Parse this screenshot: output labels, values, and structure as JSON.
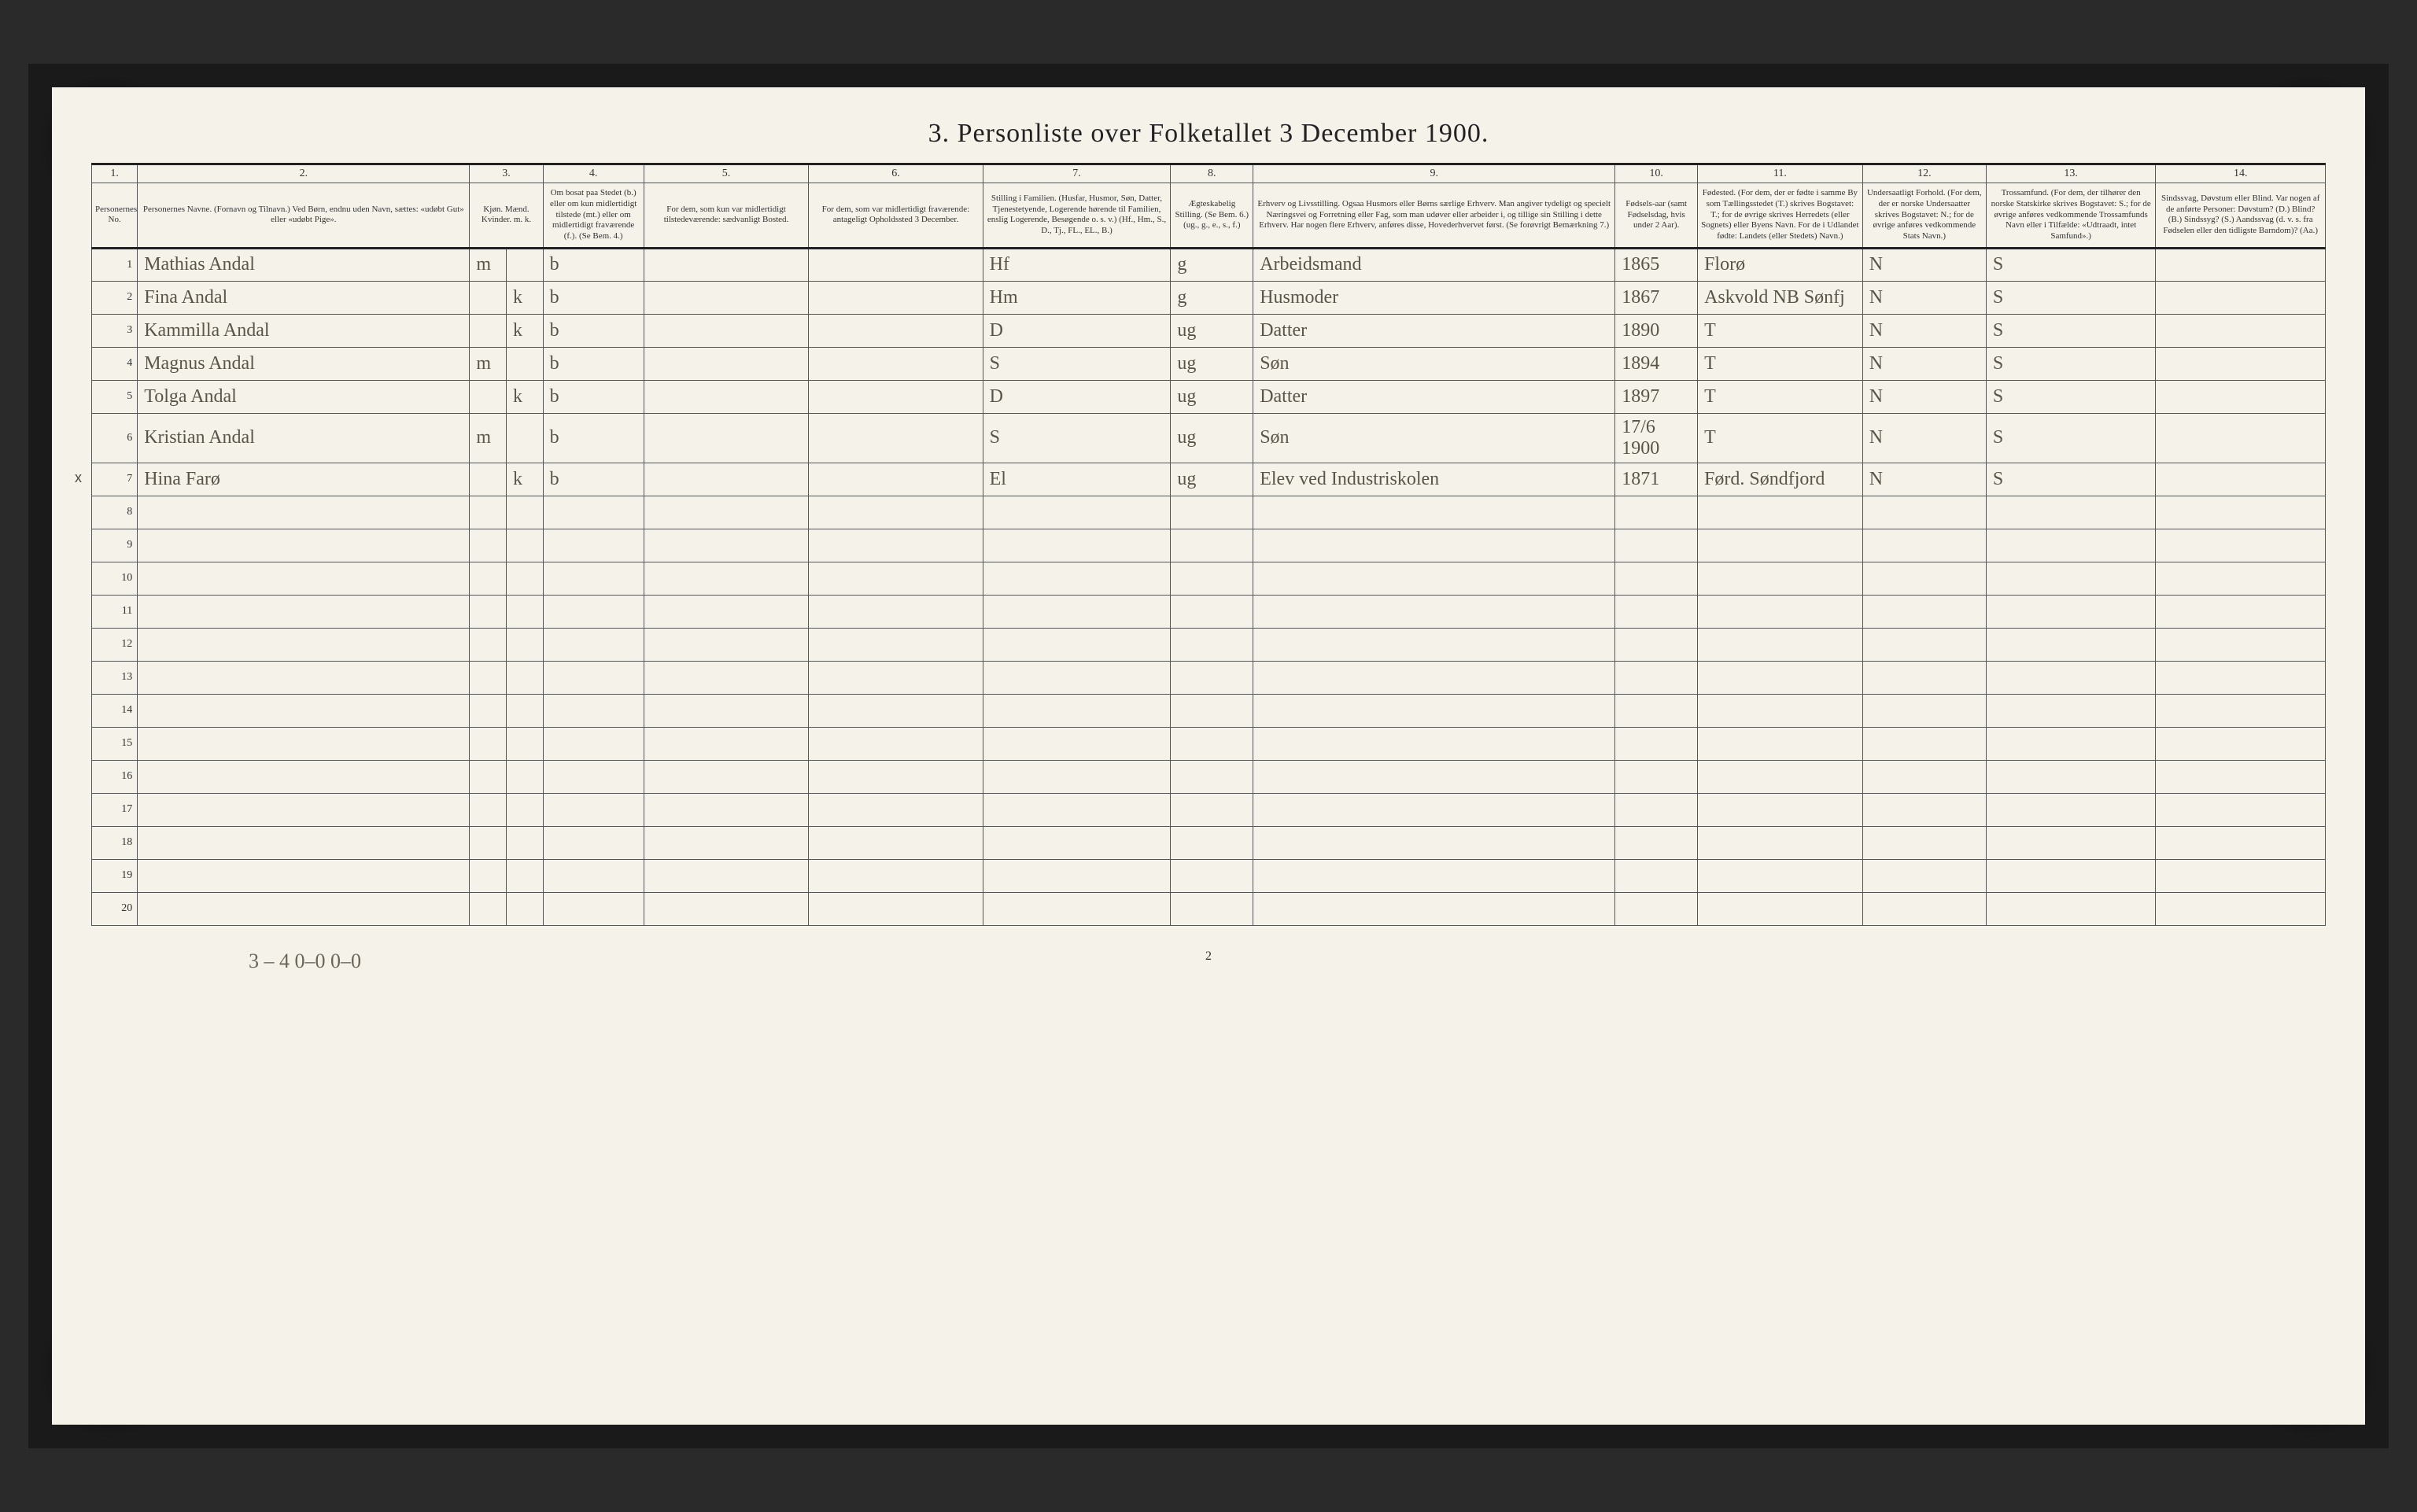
{
  "title": "3. Personliste over Folketallet 3 December 1900.",
  "colnums": [
    "1.",
    "2.",
    "3.",
    "4.",
    "5.",
    "6.",
    "7.",
    "8.",
    "9.",
    "10.",
    "11.",
    "12.",
    "13.",
    "14."
  ],
  "headers": {
    "c1": "Personernes No.",
    "c2": "Personernes Navne.\n(Fornavn og Tilnavn.)\nVed Børn, endnu uden Navn, sættes: «udøbt Gut» eller «udøbt Pige».",
    "c3": "Kjøn.\nMænd. Kvinder.\nm.  k.",
    "c4": "Om bosat paa Stedet (b.) eller om kun midlertidigt tilstede (mt.) eller om midlertidigt fraværende (f.). (Se Bem. 4.)",
    "c5": "For dem, som kun var midlertidigt tilstedeværende:\nsædvanligt Bosted.",
    "c6": "For dem, som var midlertidigt fraværende:\nantageligt Opholdssted 3 December.",
    "c7": "Stilling i Familien.\n(Husfar, Husmor, Søn, Datter, Tjenestetyende, Logerende hørende til Familien, enslig Logerende, Besøgende o. s. v.)\n(Hf., Hm., S., D., Tj., FL., EL., B.)",
    "c8": "Ægteskabelig Stilling.\n(Se Bem. 6.)\n(ug., g., e., s., f.)",
    "c9": "Erhverv og Livsstilling.\nOgsaa Husmors eller Børns særlige Erhverv. Man angiver tydeligt og specielt Næringsvei og Forretning eller Fag, som man udøver eller arbeider i, og tillige sin Stilling i dette Erhverv. Har nogen flere Erhverv, anføres disse, Hovederhvervet først.\n(Se forøvrigt Bemærkning 7.)",
    "c10": "Fødsels-aar (samt Fødselsdag, hvis under 2 Aar).",
    "c11": "Fødested.\n(For dem, der er fødte i samme By som Tællingsstedet (T.) skrives Bogstavet: T.; for de øvrige skrives Herredets (eller Sognets) eller Byens Navn. For de i Udlandet fødte: Landets (eller Stedets) Navn.)",
    "c12": "Undersaatligt Forhold.\n(For dem, der er norske Undersaatter skrives Bogstavet: N.; for de øvrige anføres vedkommende Stats Navn.)",
    "c13": "Trossamfund.\n(For dem, der tilhører den norske Statskirke skrives Bogstavet: S.; for de øvrige anføres vedkommende Trossamfunds Navn eller i Tilfælde: «Udtraadt, intet Samfund».)",
    "c14": "Sindssvag, Døvstum eller Blind.\nVar nogen af de anførte Personer: Døvstum? (D.) Blind? (B.) Sindssyg? (S.) Aandssvag (d. v. s. fra Fødselen eller den tidligste Barndom)? (Aa.)"
  },
  "rows": [
    {
      "n": "1",
      "name": "Mathias Andal",
      "m": "m",
      "k": "",
      "c4": "b",
      "c5": "",
      "c6": "",
      "c7": "Hf",
      "c8": "g",
      "c9": "Arbeidsmand",
      "c10": "1865",
      "c11": "Florø",
      "c12": "N",
      "c13": "S",
      "c14": ""
    },
    {
      "n": "2",
      "name": "Fina Andal",
      "m": "",
      "k": "k",
      "c4": "b",
      "c5": "",
      "c6": "",
      "c7": "Hm",
      "c8": "g",
      "c9": "Husmoder",
      "c10": "1867",
      "c11": "Askvold  NB Sønfj",
      "c12": "N",
      "c13": "S",
      "c14": ""
    },
    {
      "n": "3",
      "name": "Kammilla Andal",
      "m": "",
      "k": "k",
      "c4": "b",
      "c5": "",
      "c6": "",
      "c7": "D",
      "c8": "ug",
      "c9": "Datter",
      "c10": "1890",
      "c11": "T",
      "c12": "N",
      "c13": "S",
      "c14": ""
    },
    {
      "n": "4",
      "name": "Magnus Andal",
      "m": "m",
      "k": "",
      "c4": "b",
      "c5": "",
      "c6": "",
      "c7": "S",
      "c8": "ug",
      "c9": "Søn",
      "c10": "1894",
      "c11": "T",
      "c12": "N",
      "c13": "S",
      "c14": ""
    },
    {
      "n": "5",
      "name": "Tolga Andal",
      "m": "",
      "k": "k",
      "c4": "b",
      "c5": "",
      "c6": "",
      "c7": "D",
      "c8": "ug",
      "c9": "Datter",
      "c10": "1897",
      "c11": "T",
      "c12": "N",
      "c13": "S",
      "c14": ""
    },
    {
      "n": "6",
      "name": "Kristian Andal",
      "m": "m",
      "k": "",
      "c4": "b",
      "c5": "",
      "c6": "",
      "c7": "S",
      "c8": "ug",
      "c9": "Søn",
      "c10": "17/6 1900",
      "c11": "T",
      "c12": "N",
      "c13": "S",
      "c14": ""
    },
    {
      "n": "7",
      "name": "Hina Farø",
      "m": "",
      "k": "k",
      "c4": "b",
      "c5": "",
      "c6": "",
      "c7": "El",
      "c8": "ug",
      "c9": "Elev ved Industriskolen",
      "c10": "1871",
      "c11": "Førd. Søndfjord",
      "c12": "N",
      "c13": "S",
      "c14": ""
    }
  ],
  "row7_mark": "x",
  "emptyRowsStart": 8,
  "emptyRowsEnd": 20,
  "footer_left": "3 – 4   0–0    0–0",
  "footer_pagenum": "2",
  "colors": {
    "page_bg": "#f5f2ea",
    "frame_bg": "#1a1a1a",
    "ink": "#333333",
    "handwriting": "#5a5548",
    "rule_heavy": "#222222",
    "rule_light": "#555555"
  }
}
